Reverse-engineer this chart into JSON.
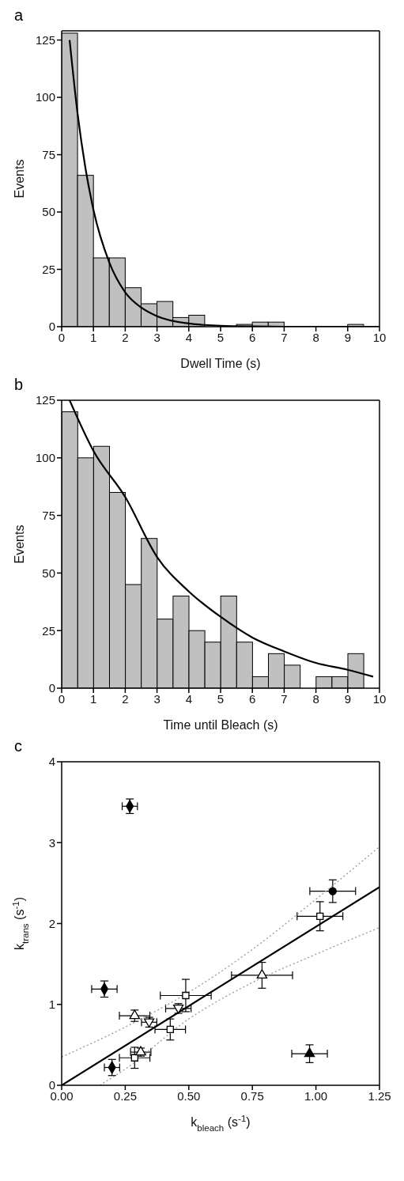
{
  "chart_data": [
    {
      "type": "histogram",
      "title": "a",
      "xlabel": "Dwell Time (s)",
      "ylabel": "Events",
      "bins": [
        0,
        0.5,
        1,
        1.5,
        2,
        2.5,
        3,
        3.5,
        4,
        4.5,
        5,
        5.5,
        6,
        6.5,
        7,
        7.5,
        8,
        8.5,
        9,
        9.5,
        10
      ],
      "values": [
        128,
        66,
        30,
        30,
        17,
        10,
        11,
        4,
        5,
        0,
        0,
        1,
        2,
        2,
        0,
        0,
        0,
        0,
        1,
        0
      ],
      "color": "#c0c0c0",
      "xlim": [
        0,
        10
      ],
      "xticks": [
        0,
        1,
        2,
        3,
        4,
        5,
        6,
        7,
        8,
        9,
        10
      ],
      "ylim": [
        0,
        129
      ],
      "yticks": [
        0,
        25,
        50,
        75,
        100,
        125
      ],
      "series": [
        {
          "type": "line",
          "color": "#000000",
          "x": [
            0.25,
            0.5,
            0.75,
            1,
            1.5,
            2,
            2.5,
            3,
            4,
            5,
            6,
            7,
            8,
            10
          ],
          "values": [
            125,
            93,
            69,
            51,
            28,
            15,
            8.4,
            4.6,
            1.4,
            0.4,
            0.1,
            0,
            0,
            0
          ]
        }
      ]
    },
    {
      "type": "histogram",
      "title": "b",
      "xlabel": "Time until Bleach (s)",
      "ylabel": "Events",
      "bins": [
        0,
        0.5,
        1,
        1.5,
        2,
        2.5,
        3,
        3.5,
        4,
        4.5,
        5,
        5.5,
        6,
        6.5,
        7,
        7.5,
        8,
        8.5,
        9,
        9.5,
        10
      ],
      "values": [
        120,
        100,
        105,
        85,
        45,
        65,
        30,
        40,
        25,
        20,
        40,
        20,
        5,
        15,
        10,
        0,
        5,
        5,
        15,
        0
      ],
      "color": "#c0c0c0",
      "xlim": [
        0,
        10
      ],
      "xticks": [
        0,
        1,
        2,
        3,
        4,
        5,
        6,
        7,
        8,
        9,
        10
      ],
      "ylim": [
        0,
        125
      ],
      "yticks": [
        0,
        25,
        50,
        75,
        100,
        125
      ],
      "series": [
        {
          "type": "line",
          "color": "#000000",
          "x": [
            0.25,
            1,
            2,
            3,
            4,
            5,
            6,
            7,
            8,
            9,
            9.8
          ],
          "values": [
            125,
            103,
            83,
            57,
            42,
            31,
            22,
            16,
            11,
            8,
            5
          ]
        }
      ]
    },
    {
      "type": "scatter",
      "title": "c",
      "xlabel": "k$_{bleach}$ (s$^{-1}$)",
      "ylabel": "k$_{trans}$ (s$^{-1}$)",
      "xlim": [
        0,
        1.25
      ],
      "xticks": [
        {
          "value": 0,
          "label": "0.00"
        },
        {
          "value": 0.25,
          "label": "0.25"
        },
        {
          "value": 0.5,
          "label": "0.50"
        },
        {
          "value": 0.75,
          "label": "0.75"
        },
        {
          "value": 1,
          "label": "1.00"
        },
        {
          "value": 1.25,
          "label": "1.25"
        }
      ],
      "ylim": [
        0,
        4
      ],
      "yticks": [
        0,
        1,
        2,
        3,
        4
      ],
      "series": [
        {
          "type": "scatter",
          "marker": "diamond",
          "color": "#000000",
          "x": [
            0.268,
            0.168,
            0.198
          ],
          "values": [
            3.45,
            1.19,
            0.22
          ],
          "xerrors": [
            0.03,
            0.05,
            0.03
          ],
          "errors": [
            0.09,
            0.1,
            0.1
          ]
        },
        {
          "type": "scatter",
          "marker": "circle",
          "color": "#000000",
          "x": [
            1.066
          ],
          "values": [
            2.4
          ],
          "xerrors": [
            0.09
          ],
          "errors": [
            0.14
          ]
        },
        {
          "type": "scatter",
          "marker": "square",
          "color": "#ffffff",
          "x": [
            1.016,
            0.488,
            0.427,
            0.287
          ],
          "values": [
            2.09,
            1.11,
            0.69,
            0.34
          ],
          "xerrors": [
            0.09,
            0.1,
            0.06,
            0.06
          ],
          "errors": [
            0.18,
            0.2,
            0.13,
            0.13
          ]
        },
        {
          "type": "scatter",
          "marker": "triangle",
          "color": "#ffffff",
          "x": [
            0.788,
            0.287,
            0.311
          ],
          "values": [
            1.36,
            0.86,
            0.41
          ],
          "xerrors": [
            0.12,
            0.06,
            0.04
          ],
          "errors": [
            0.16,
            0.07,
            0.05
          ]
        },
        {
          "type": "scatter",
          "marker": "triangle-down",
          "color": "#ffffff",
          "x": [
            0.344,
            0.459
          ],
          "values": [
            0.78,
            0.95
          ],
          "xerrors": [
            0.03,
            0.05
          ],
          "errors": [
            0.06,
            0.06
          ]
        },
        {
          "type": "scatter",
          "marker": "triangle",
          "color": "#000000",
          "x": [
            0.975
          ],
          "values": [
            0.39
          ],
          "xerrors": [
            0.07
          ],
          "errors": [
            0.11
          ]
        },
        {
          "type": "line",
          "color": "#000000",
          "line_style": "solid",
          "x": [
            0,
            1.25
          ],
          "values": [
            0,
            2.45
          ]
        },
        {
          "type": "line",
          "color": "#999999",
          "line_style": "dotted",
          "x": [
            0,
            0.25,
            0.5,
            0.75,
            1,
            1.25
          ],
          "values": [
            0.35,
            0.72,
            1.15,
            1.68,
            2.3,
            2.95
          ]
        },
        {
          "type": "line",
          "color": "#999999",
          "line_style": "dotted",
          "x": [
            0.15,
            0.25,
            0.5,
            0.75,
            1,
            1.25
          ],
          "values": [
            0,
            0.2,
            0.82,
            1.27,
            1.62,
            1.95
          ]
        }
      ]
    }
  ]
}
